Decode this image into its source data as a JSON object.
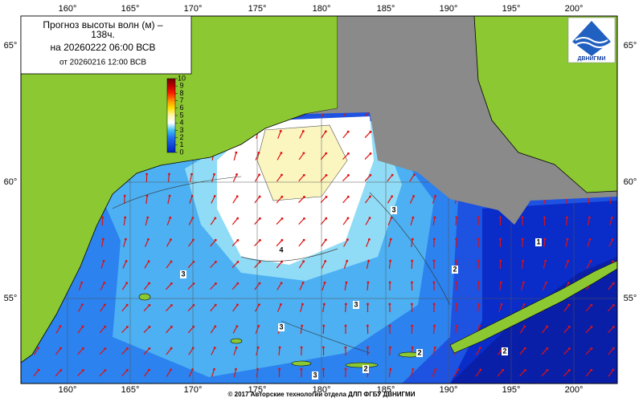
{
  "header": {
    "title": "Прогноз высоты волн (м) –",
    "lead": "138ч.",
    "valid": "на 20260222 06:00 ВСВ",
    "issued": "от 20260216 12:00 ВСВ"
  },
  "logo": "ДВНИГМИ",
  "legend": {
    "ticks": [
      10,
      9,
      8,
      7,
      6,
      5,
      4,
      3,
      2,
      1,
      0
    ]
  },
  "longitudes": [
    "160°",
    "165°",
    "170°",
    "175°",
    "180°",
    "185°",
    "190°",
    "195°",
    "200°"
  ],
  "latitudes": [
    "65°",
    "60°",
    "55°"
  ],
  "contour_labels": [
    "4",
    "3",
    "3",
    "3",
    "3",
    "3",
    "2",
    "2",
    "1",
    "2",
    "2"
  ],
  "footer": "© 2017 Авторские технологии отдела ДЛП ФГБУ ДВНИГМИ"
}
